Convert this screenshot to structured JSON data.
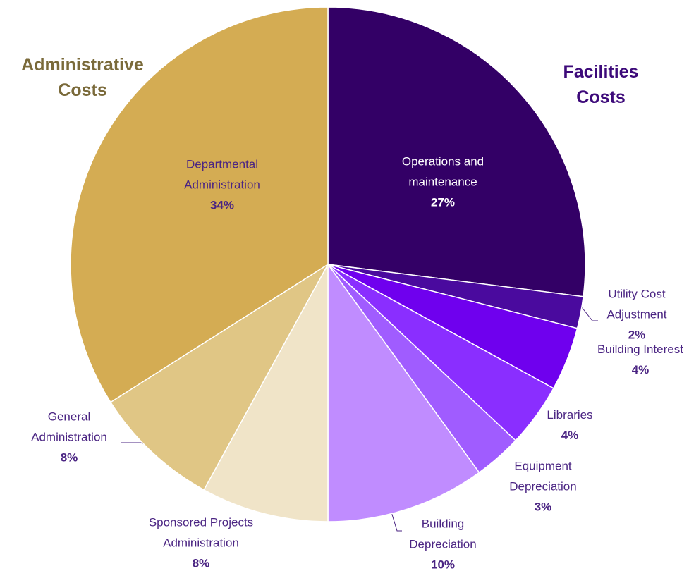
{
  "chart_data": {
    "type": "pie",
    "categories": [
      "Operations and maintenance",
      "Utility Cost Adjustment",
      "Building Interest",
      "Libraries",
      "Equipment Depreciation",
      "Building Depreciation",
      "Sponsored Projects Administration",
      "General Administration",
      "Departmental Administration"
    ],
    "values": [
      27,
      2,
      4,
      4,
      3,
      10,
      8,
      8,
      34
    ],
    "value_labels": [
      "27%",
      "2%",
      "4%",
      "4%",
      "3%",
      "10%",
      "8%",
      "8%",
      "34%"
    ],
    "colors": [
      "#330066",
      "#4a0a9e",
      "#6f00ee",
      "#8a2eff",
      "#a05cff",
      "#c08cff",
      "#f0e4c8",
      "#e0c685",
      "#d4ac53"
    ],
    "annotations": [
      {
        "text": "Administrative Costs",
        "color": "#7a6a3a"
      },
      {
        "text": "Facilities Costs",
        "color": "#3d0a7a"
      }
    ]
  }
}
